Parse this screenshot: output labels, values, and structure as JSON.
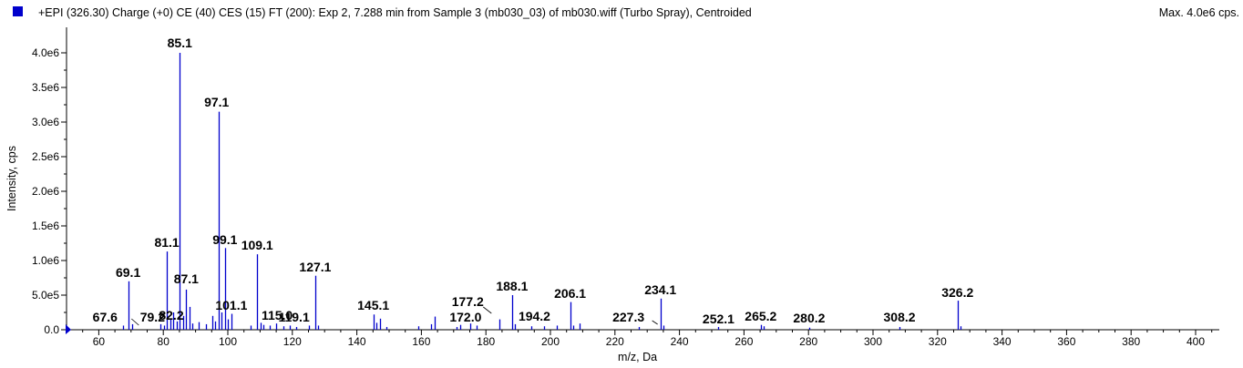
{
  "header": {
    "title": "+EPI (326.30) Charge (+0) CE (40) CES (15) FT (200): Exp 2, 7.288 min from Sample 3 (mb030_03) of mb030.wiff (Turbo Spray), Centroided",
    "max": "Max. 4.0e6 cps.",
    "series_color": "#0000cc"
  },
  "chart_data": {
    "type": "bar",
    "xlabel": "m/z, Da",
    "ylabel": "Intensity, cps",
    "xlim": [
      50,
      410
    ],
    "ylim": [
      0,
      4000000
    ],
    "grid": false,
    "x_ticks": [
      60,
      80,
      100,
      120,
      140,
      160,
      180,
      200,
      220,
      240,
      260,
      280,
      300,
      320,
      340,
      360,
      380,
      400
    ],
    "y_ticks": [
      {
        "value": 0,
        "label": "0.0"
      },
      {
        "value": 500000,
        "label": "5.0e5"
      },
      {
        "value": 1000000,
        "label": "1.0e6"
      },
      {
        "value": 1500000,
        "label": "1.5e6"
      },
      {
        "value": 2000000,
        "label": "2.0e6"
      },
      {
        "value": 2500000,
        "label": "2.5e6"
      },
      {
        "value": 3000000,
        "label": "3.0e6"
      },
      {
        "value": 3500000,
        "label": "3.5e6"
      },
      {
        "value": 4000000,
        "label": "4.0e6"
      }
    ],
    "peaks": [
      {
        "mz": 67.6,
        "intensity": 60000
      },
      {
        "mz": 69.1,
        "intensity": 700000
      },
      {
        "mz": 70.2,
        "intensity": 80000
      },
      {
        "mz": 79.2,
        "intensity": 80000
      },
      {
        "mz": 80.2,
        "intensity": 60000
      },
      {
        "mz": 81.1,
        "intensity": 1130000
      },
      {
        "mz": 82.2,
        "intensity": 160000
      },
      {
        "mz": 83.1,
        "intensity": 250000
      },
      {
        "mz": 84.1,
        "intensity": 120000
      },
      {
        "mz": 85.1,
        "intensity": 4000000
      },
      {
        "mz": 86.1,
        "intensity": 200000
      },
      {
        "mz": 87.1,
        "intensity": 580000
      },
      {
        "mz": 88.1,
        "intensity": 330000
      },
      {
        "mz": 89.1,
        "intensity": 90000
      },
      {
        "mz": 91.1,
        "intensity": 110000
      },
      {
        "mz": 93.1,
        "intensity": 80000
      },
      {
        "mz": 95.1,
        "intensity": 200000
      },
      {
        "mz": 96.1,
        "intensity": 120000
      },
      {
        "mz": 97.1,
        "intensity": 3150000
      },
      {
        "mz": 98.1,
        "intensity": 250000
      },
      {
        "mz": 99.1,
        "intensity": 1180000
      },
      {
        "mz": 100.1,
        "intensity": 150000
      },
      {
        "mz": 101.1,
        "intensity": 230000
      },
      {
        "mz": 107.1,
        "intensity": 60000
      },
      {
        "mz": 109.1,
        "intensity": 1090000
      },
      {
        "mz": 110.1,
        "intensity": 100000
      },
      {
        "mz": 111.1,
        "intensity": 70000
      },
      {
        "mz": 113.1,
        "intensity": 60000
      },
      {
        "mz": 115.0,
        "intensity": 90000
      },
      {
        "mz": 117.1,
        "intensity": 50000
      },
      {
        "mz": 119.1,
        "intensity": 60000
      },
      {
        "mz": 121.1,
        "intensity": 40000
      },
      {
        "mz": 125.1,
        "intensity": 60000
      },
      {
        "mz": 127.1,
        "intensity": 780000
      },
      {
        "mz": 128.1,
        "intensity": 60000
      },
      {
        "mz": 145.1,
        "intensity": 220000
      },
      {
        "mz": 146.1,
        "intensity": 100000
      },
      {
        "mz": 147.1,
        "intensity": 160000
      },
      {
        "mz": 149.1,
        "intensity": 40000
      },
      {
        "mz": 159.1,
        "intensity": 50000
      },
      {
        "mz": 163.1,
        "intensity": 80000
      },
      {
        "mz": 164.1,
        "intensity": 190000
      },
      {
        "mz": 171.0,
        "intensity": 40000
      },
      {
        "mz": 172.0,
        "intensity": 70000
      },
      {
        "mz": 175.1,
        "intensity": 90000
      },
      {
        "mz": 177.2,
        "intensity": 60000
      },
      {
        "mz": 184.1,
        "intensity": 150000
      },
      {
        "mz": 188.1,
        "intensity": 500000
      },
      {
        "mz": 189.1,
        "intensity": 80000
      },
      {
        "mz": 194.2,
        "intensity": 50000
      },
      {
        "mz": 198.1,
        "intensity": 50000
      },
      {
        "mz": 202.1,
        "intensity": 60000
      },
      {
        "mz": 206.1,
        "intensity": 400000
      },
      {
        "mz": 207.1,
        "intensity": 60000
      },
      {
        "mz": 209.1,
        "intensity": 90000
      },
      {
        "mz": 227.3,
        "intensity": 40000
      },
      {
        "mz": 234.1,
        "intensity": 450000
      },
      {
        "mz": 235.1,
        "intensity": 60000
      },
      {
        "mz": 252.1,
        "intensity": 40000
      },
      {
        "mz": 265.2,
        "intensity": 70000
      },
      {
        "mz": 266.2,
        "intensity": 50000
      },
      {
        "mz": 280.2,
        "intensity": 30000
      },
      {
        "mz": 308.2,
        "intensity": 40000
      },
      {
        "mz": 326.2,
        "intensity": 420000
      },
      {
        "mz": 327.2,
        "intensity": 50000
      }
    ],
    "annotations": [
      {
        "text": "85.1",
        "mz": 85.1,
        "intensity": 4000000
      },
      {
        "text": "97.1",
        "mz": 97.1,
        "intensity": 3150000
      },
      {
        "text": "81.1",
        "mz": 81.1,
        "intensity": 1130000
      },
      {
        "text": "99.1",
        "mz": 99.1,
        "intensity": 1180000
      },
      {
        "text": "109.1",
        "mz": 109.1,
        "intensity": 1090000
      },
      {
        "text": "69.1",
        "mz": 69.1,
        "intensity": 700000
      },
      {
        "text": "127.1",
        "mz": 127.1,
        "intensity": 780000
      },
      {
        "text": "87.1",
        "mz": 87.1,
        "intensity": 580000
      },
      {
        "text": "101.1",
        "mz": 101.1,
        "intensity": 230000
      },
      {
        "text": "145.1",
        "mz": 145.1,
        "intensity": 220000
      },
      {
        "text": "177.2",
        "mz": 177.2,
        "intensity": 60000
      },
      {
        "text": "188.1",
        "mz": 188.1,
        "intensity": 500000
      },
      {
        "text": "206.1",
        "mz": 206.1,
        "intensity": 400000
      },
      {
        "text": "234.1",
        "mz": 234.1,
        "intensity": 450000
      },
      {
        "text": "326.2",
        "mz": 326.2,
        "intensity": 420000
      },
      {
        "text": "67.6",
        "mz": 67.6,
        "intensity": 60000
      },
      {
        "text": "79.2",
        "mz": 79.2,
        "intensity": 80000
      },
      {
        "text": "82.2",
        "mz": 82.2,
        "intensity": 160000
      },
      {
        "text": "115.0",
        "mz": 115.0,
        "intensity": 90000
      },
      {
        "text": "119.1",
        "mz": 119.1,
        "intensity": 60000
      },
      {
        "text": "172.0",
        "mz": 172.0,
        "intensity": 70000
      },
      {
        "text": "194.2",
        "mz": 194.2,
        "intensity": 50000
      },
      {
        "text": "227.3",
        "mz": 227.3,
        "intensity": 40000
      },
      {
        "text": "252.1",
        "mz": 252.1,
        "intensity": 40000
      },
      {
        "text": "265.2",
        "mz": 265.2,
        "intensity": 70000
      },
      {
        "text": "280.2",
        "mz": 280.2,
        "intensity": 30000
      },
      {
        "text": "308.2",
        "mz": 308.2,
        "intensity": 40000
      }
    ]
  }
}
